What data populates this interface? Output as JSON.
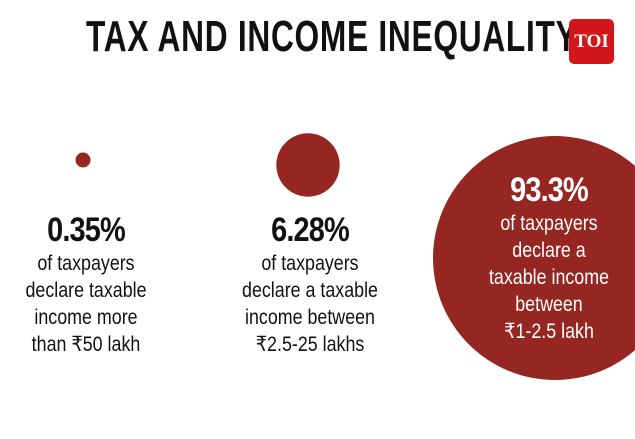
{
  "title": "TAX AND INCOME INEQUALITY",
  "logo": "TOI",
  "chart_data": {
    "type": "bubble",
    "title": "TAX AND INCOME INEQUALITY",
    "colors": {
      "bubble": "#962621"
    },
    "items": [
      {
        "value": 0.35,
        "label": "0.35%",
        "desc": [
          "of taxpayers",
          "declare taxable",
          "income more",
          "than ₹50 lakh"
        ]
      },
      {
        "value": 6.28,
        "label": "6.28%",
        "desc": [
          "of taxpayers",
          "declare a taxable",
          "income between",
          "₹2.5-25 lakhs"
        ]
      },
      {
        "value": 93.3,
        "label": "93.3%",
        "desc": [
          "of taxpayers",
          "declare a",
          "taxable income",
          "between",
          "₹1-2.5 lakh"
        ]
      }
    ]
  }
}
